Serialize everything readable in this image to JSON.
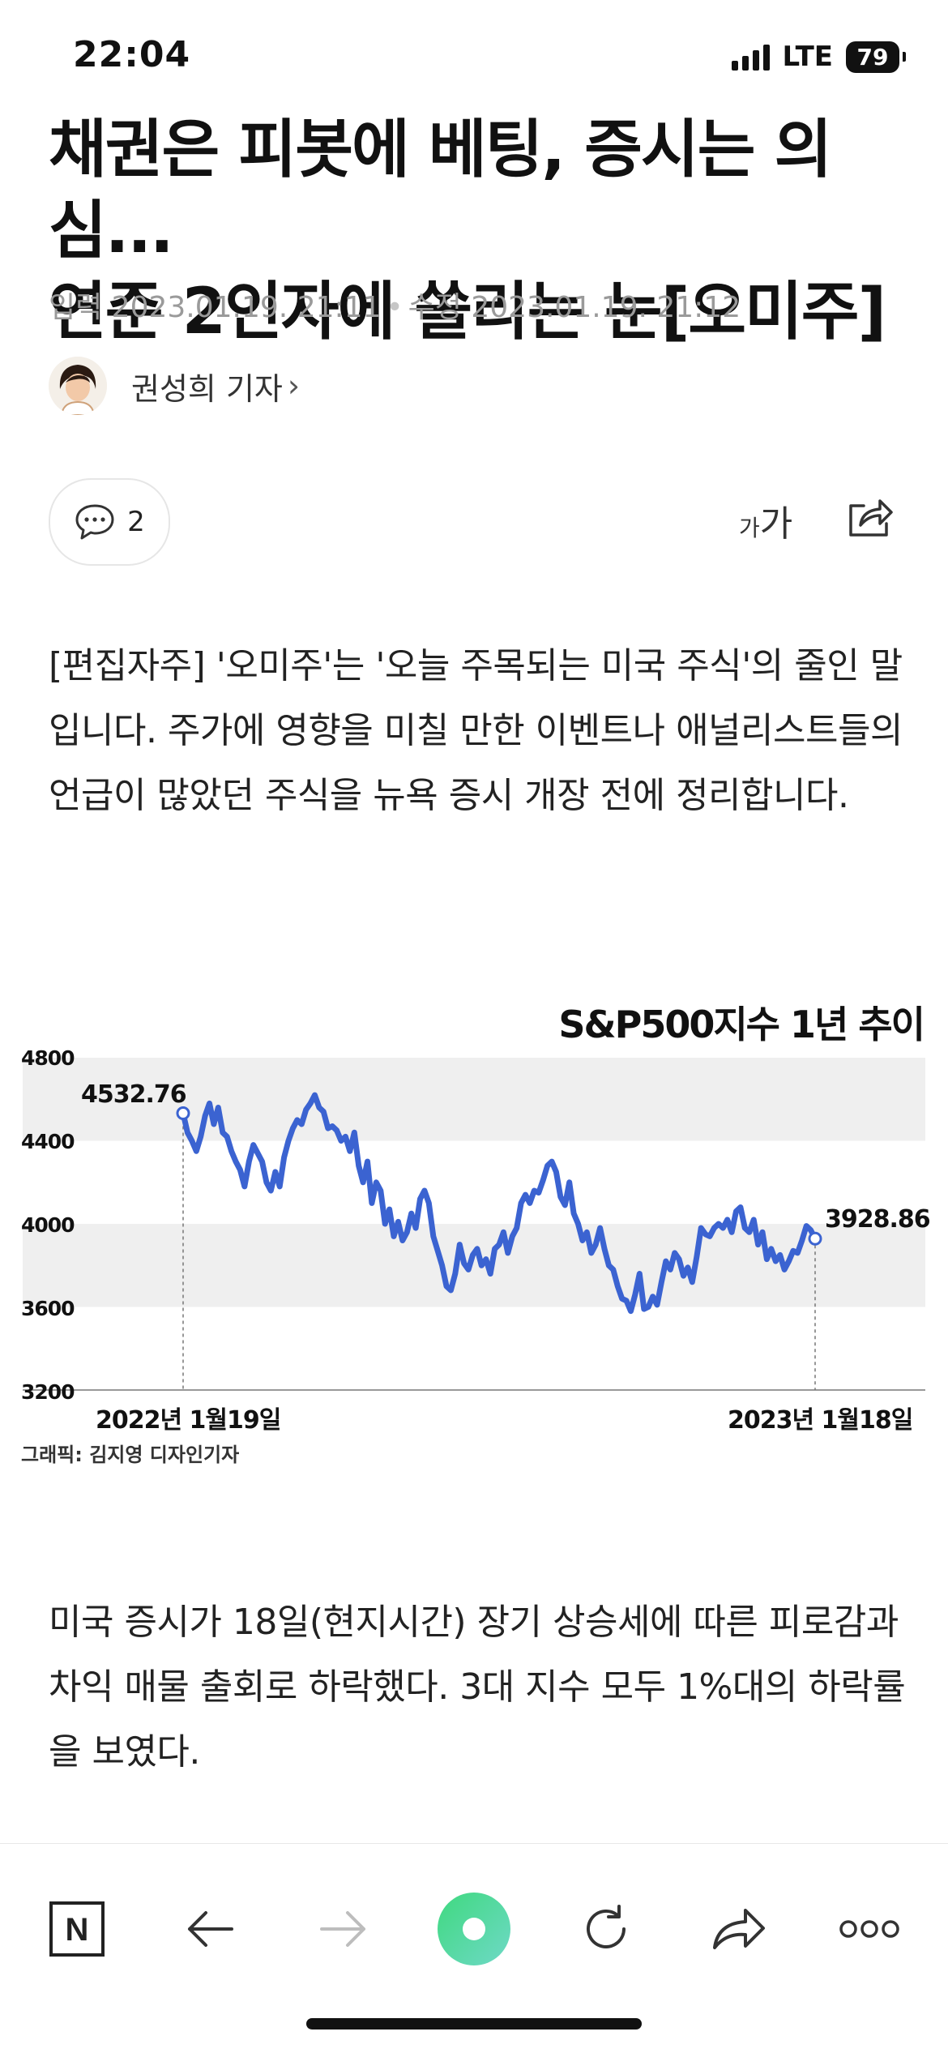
{
  "status_bar": {
    "time": "22:04",
    "network": "LTE",
    "battery": "79"
  },
  "article": {
    "title_line1": "채권은 피봇에 베팅, 증시는 의심...",
    "title_line2": "연준 2인자에 쏠리는 눈[오미주]",
    "input_label": "입력 2023.01.19. 21:11",
    "edit_label": "수정 2023.01.19. 21:12",
    "author": "권성희 기자",
    "comment_count": "2",
    "fontsize_small": "가",
    "fontsize_large": "가",
    "paragraph1": "[편집자주] '오미주'는 '오늘 주목되는 미국 주식'의 줄인 말입니다. 주가에 영향을 미칠 만한 이벤트나 애널리스트들의 언급이 많았던 주식을 뉴욕 증시 개장 전에 정리합니다.",
    "paragraph2": "미국 증시가 18일(현지시간) 장기 상승세에 따른 피로감과 차익 매물 출회로 하락했다. 3대 지수 모두 1%대의 하락률을 보였다.",
    "graphic_credit": "그래픽: 김지영 디자인기자"
  },
  "chart_data": {
    "type": "line",
    "title": "S&P500지수 1년 추이",
    "ylim": [
      3200,
      4800
    ],
    "yticks": [
      "4800",
      "4400",
      "4000",
      "3600",
      "3200"
    ],
    "x_start_label": "2022년 1월19일",
    "x_end_label": "2023년 1월18일",
    "start_value": "4532.76",
    "end_value": "3928.86",
    "color": "#3b63d1",
    "band_color": "#efefef",
    "values": [
      4532.76,
      4440,
      4400,
      4350,
      4420,
      4520,
      4580,
      4480,
      4560,
      4440,
      4420,
      4350,
      4300,
      4260,
      4180,
      4300,
      4380,
      4340,
      4300,
      4200,
      4160,
      4250,
      4180,
      4320,
      4400,
      4460,
      4500,
      4480,
      4550,
      4580,
      4620,
      4560,
      4540,
      4460,
      4470,
      4450,
      4400,
      4420,
      4350,
      4440,
      4280,
      4200,
      4300,
      4100,
      4200,
      4160,
      4000,
      4070,
      3940,
      4010,
      3920,
      3960,
      4050,
      3980,
      4120,
      4160,
      4100,
      3940,
      3870,
      3800,
      3700,
      3680,
      3760,
      3900,
      3810,
      3780,
      3850,
      3880,
      3800,
      3830,
      3760,
      3880,
      3900,
      3960,
      3860,
      3940,
      3980,
      4100,
      4140,
      4100,
      4160,
      4150,
      4210,
      4280,
      4300,
      4250,
      4130,
      4090,
      4200,
      4050,
      4000,
      3920,
      3960,
      3860,
      3900,
      3980,
      3880,
      3800,
      3780,
      3700,
      3640,
      3630,
      3580,
      3660,
      3760,
      3590,
      3600,
      3650,
      3610,
      3720,
      3820,
      3780,
      3860,
      3830,
      3750,
      3790,
      3720,
      3840,
      3980,
      3950,
      3940,
      3980,
      4000,
      3980,
      4020,
      3960,
      4060,
      4080,
      3980,
      3960,
      4020,
      3900,
      3960,
      3830,
      3880,
      3820,
      3850,
      3780,
      3820,
      3870,
      3860,
      3920,
      3990,
      3970,
      3928.86
    ]
  },
  "toolbar": {
    "n_label": "N"
  }
}
